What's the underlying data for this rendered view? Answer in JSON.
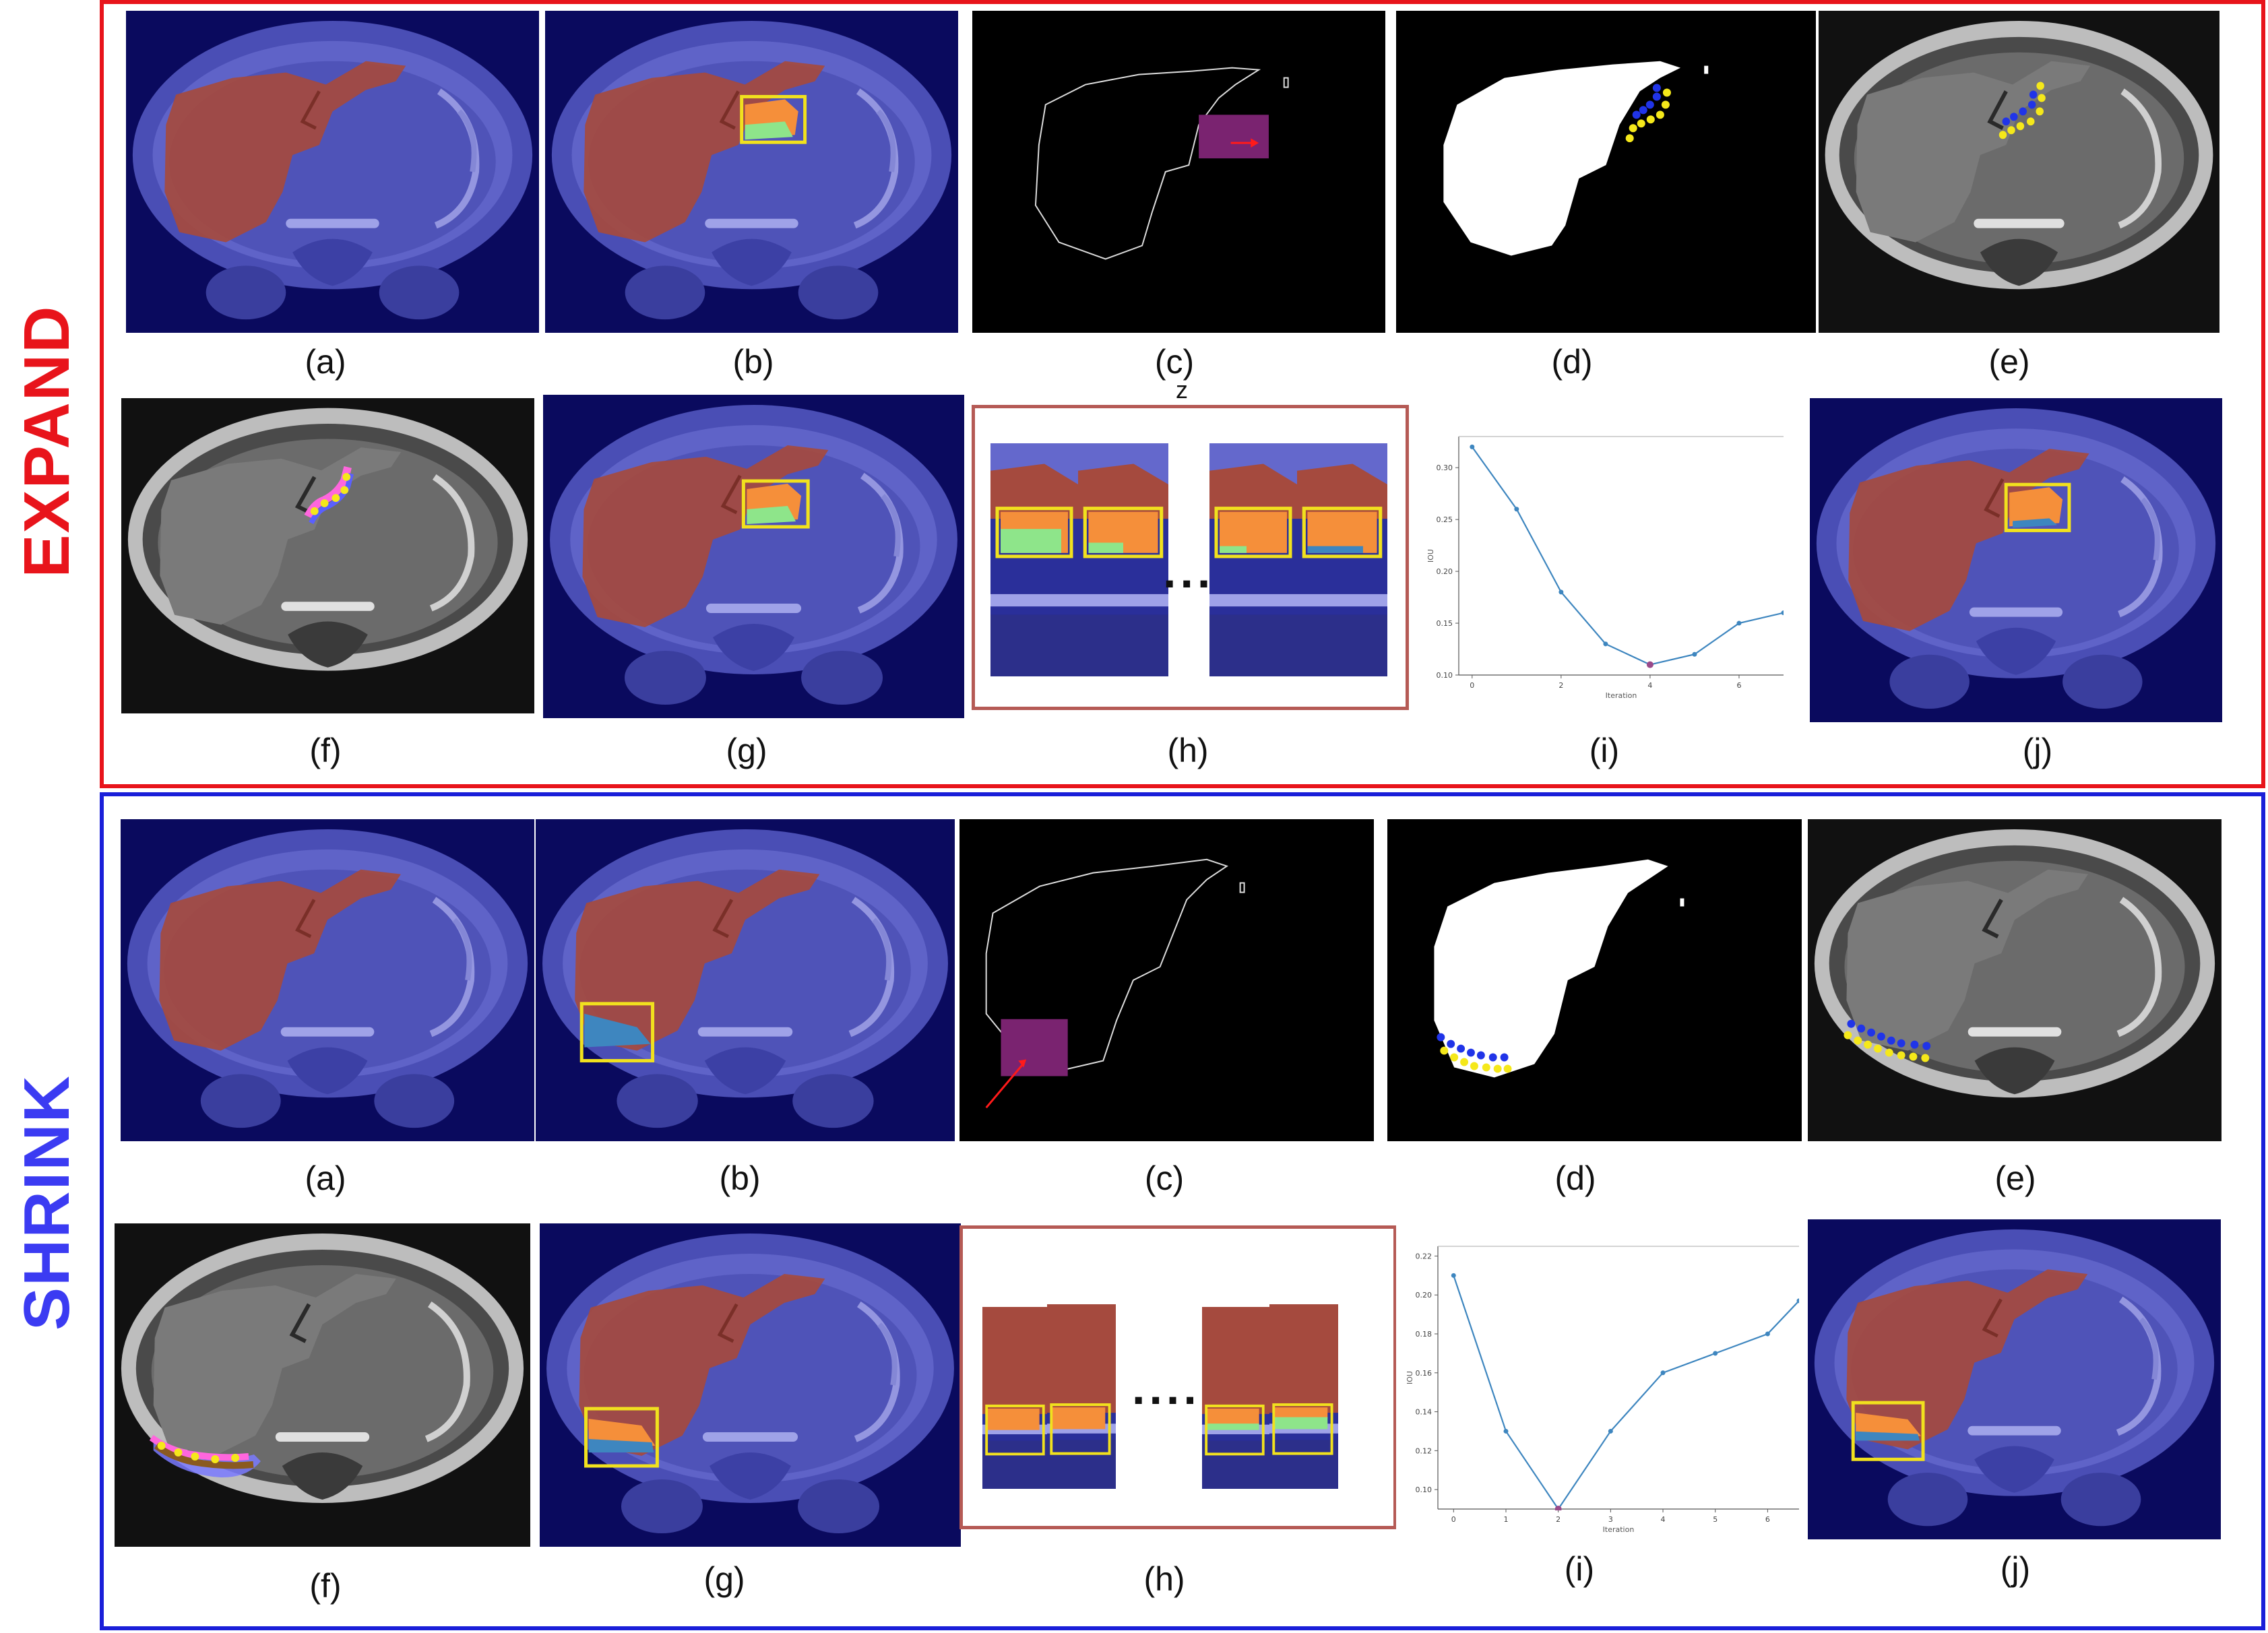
{
  "sections": {
    "expand": {
      "label": "EXPAND",
      "color": "#e8141b"
    },
    "shrink": {
      "label": "SHRINK",
      "color": "#3b3bf2"
    }
  },
  "captions": {
    "expand": [
      "(a)",
      "(b)",
      "(c)",
      "(d)",
      "(e)",
      "(f)",
      "(g)",
      "(h)",
      "(i)",
      "(j)"
    ],
    "shrink": [
      "(a)",
      "(b)",
      "(c)",
      "(d)",
      "(e)",
      "(f)",
      "(g)",
      "(h)",
      "(i)",
      "(j)"
    ]
  },
  "stray_mark": "z",
  "ellipsis": "....",
  "colors": {
    "mri_background": "#0a0a5e",
    "body_overlay": "#5f63c8",
    "liver_overlay": "#a54a3e",
    "added_region": "#f58f3a",
    "removed_region": "#8ee58a",
    "highlight_box": "#f1e11e",
    "contour_points_upper": "#2034e8",
    "contour_points_lower": "#f5e81a",
    "iou_line": "#3e86bf",
    "iou_min_point": "#9a4a8a"
  },
  "chart_data": [
    {
      "type": "line",
      "panel": "EXPAND (i)",
      "xlabel": "Iteration",
      "ylabel": "IOU",
      "xlim": [
        -0.3,
        7
      ],
      "ylim": [
        0.1,
        0.33
      ],
      "xticks": [
        "0",
        "2",
        "4",
        "6"
      ],
      "yticks": [
        "0.10",
        "0.15",
        "0.20",
        "0.25",
        "0.30"
      ],
      "x": [
        0,
        1,
        2,
        3,
        4,
        5,
        6,
        7
      ],
      "y": [
        0.32,
        0.26,
        0.18,
        0.13,
        0.11,
        0.12,
        0.15,
        0.16
      ],
      "min_point": {
        "x": 4,
        "y": 0.11
      },
      "grid": false
    },
    {
      "type": "line",
      "panel": "SHRINK (i)",
      "xlabel": "Iteration",
      "ylabel": "IOU",
      "xlim": [
        -0.3,
        6.6
      ],
      "ylim": [
        0.09,
        0.225
      ],
      "xticks": [
        "0",
        "1",
        "2",
        "3",
        "4",
        "5",
        "6"
      ],
      "yticks": [
        "0.10",
        "0.12",
        "0.14",
        "0.16",
        "0.18",
        "0.20",
        "0.22"
      ],
      "x": [
        0,
        1,
        2,
        3,
        4,
        5,
        6,
        6.6
      ],
      "y": [
        0.21,
        0.13,
        0.09,
        0.13,
        0.16,
        0.17,
        0.18,
        0.197
      ],
      "min_point": {
        "x": 2,
        "y": 0.09
      },
      "grid": false
    }
  ]
}
